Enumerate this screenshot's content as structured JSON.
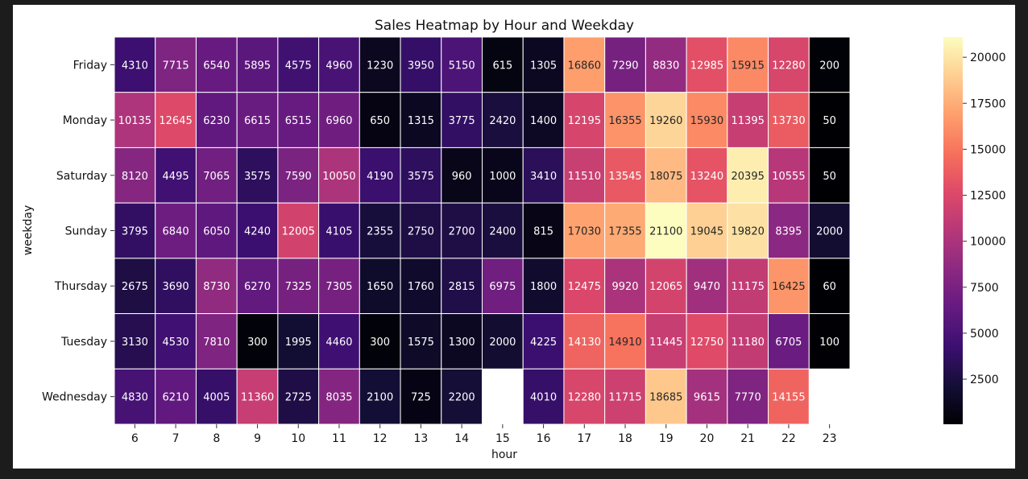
{
  "chart_data": {
    "type": "heatmap",
    "title": "Sales Heatmap by Hour and Weekday",
    "xlabel": "hour",
    "ylabel": "weekday",
    "x_categories": [
      "6",
      "7",
      "8",
      "9",
      "10",
      "11",
      "12",
      "13",
      "14",
      "15",
      "16",
      "17",
      "18",
      "19",
      "20",
      "21",
      "22",
      "23"
    ],
    "y_categories": [
      "Friday",
      "Monday",
      "Saturday",
      "Sunday",
      "Thursday",
      "Tuesday",
      "Wednesday"
    ],
    "values": [
      [
        4310,
        7715,
        6540,
        5895,
        4575,
        4960,
        1230,
        3950,
        5150,
        615,
        1305,
        16860,
        7290,
        8830,
        12985,
        15915,
        12280,
        200
      ],
      [
        10135,
        12645,
        6230,
        6615,
        6515,
        6960,
        650,
        1315,
        3775,
        2420,
        1400,
        12195,
        16355,
        19260,
        15930,
        11395,
        13730,
        50
      ],
      [
        8120,
        4495,
        7065,
        3575,
        7590,
        10050,
        4190,
        3575,
        960,
        1000,
        3410,
        11510,
        13545,
        18075,
        13240,
        20395,
        10555,
        50
      ],
      [
        3795,
        6840,
        6050,
        4240,
        12005,
        4105,
        2355,
        2750,
        2700,
        2400,
        815,
        17030,
        17355,
        21100,
        19045,
        19820,
        8395,
        2000
      ],
      [
        2675,
        3690,
        8730,
        6270,
        7325,
        7305,
        1650,
        1760,
        2815,
        6975,
        1800,
        12475,
        9920,
        12065,
        9470,
        11175,
        16425,
        60
      ],
      [
        3130,
        4530,
        7810,
        300,
        1995,
        4460,
        300,
        1575,
        1300,
        2000,
        4225,
        14130,
        14910,
        11445,
        12750,
        11180,
        6705,
        100
      ],
      [
        4830,
        6210,
        4005,
        11360,
        2725,
        8035,
        2100,
        725,
        2200,
        null,
        4010,
        12280,
        11715,
        18685,
        9615,
        7770,
        14155,
        null
      ]
    ],
    "colormap": "magma",
    "vmin": 50,
    "vmax": 21100,
    "colorbar_ticks": [
      "2500",
      "5000",
      "7500",
      "10000",
      "12500",
      "15000",
      "17500",
      "20000"
    ],
    "grid": false
  }
}
